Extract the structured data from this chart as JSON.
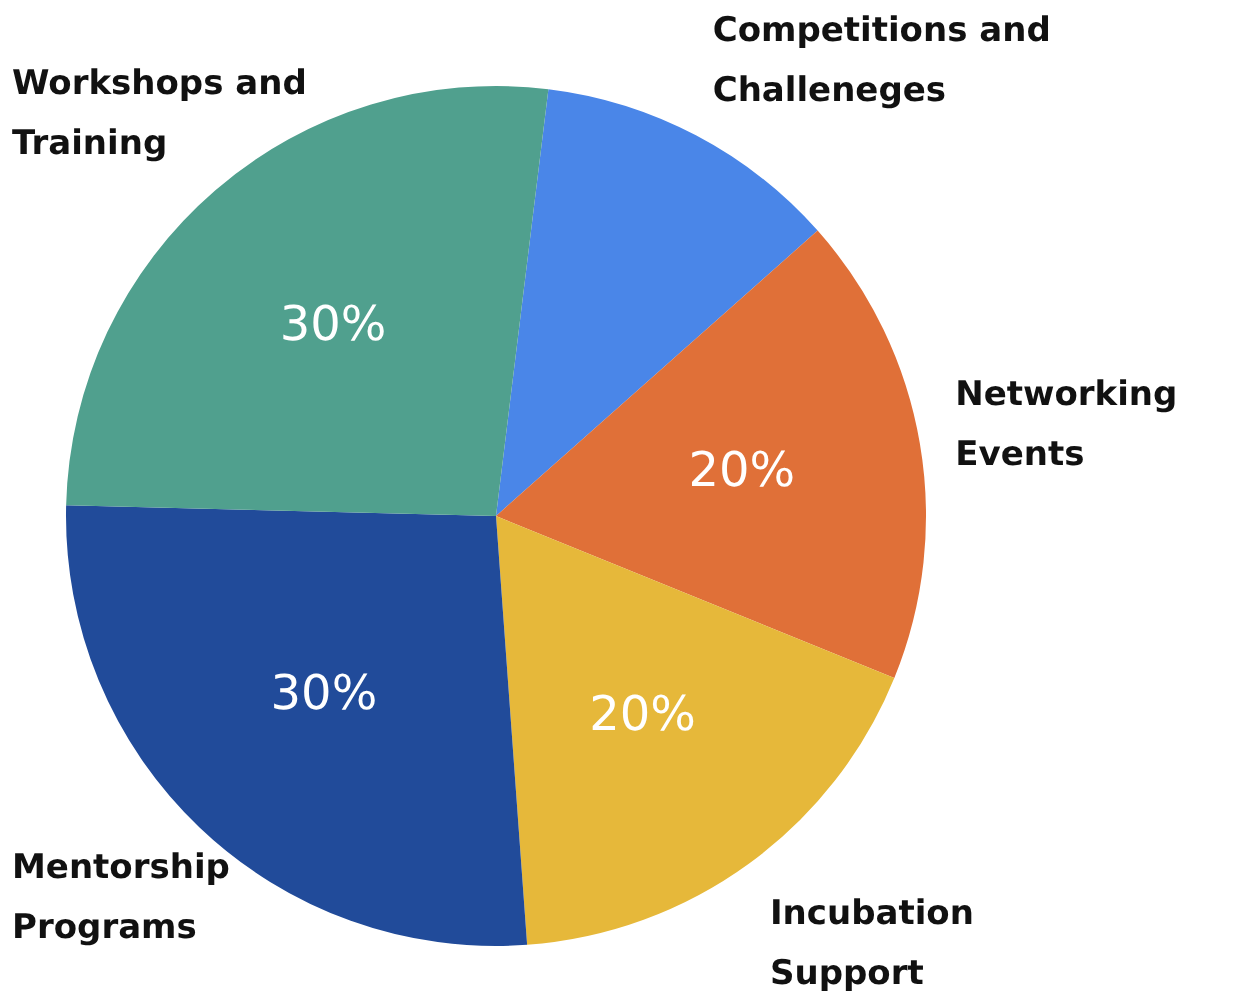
{
  "chart_data": {
    "type": "pie",
    "categories": [
      "Competitions and Challeneges",
      "Networking Events",
      "Incubation Support",
      "Mentorship Programs",
      "Workshops and Training"
    ],
    "values": [
      13,
      20,
      20,
      30,
      30
    ],
    "colors": [
      "#4a86e8",
      "#e07038",
      "#e6b83a",
      "#214b9a",
      "#50a08e"
    ],
    "value_labels": [
      null,
      "20%",
      "20%",
      "30%",
      "30%"
    ],
    "legend": false
  }
}
